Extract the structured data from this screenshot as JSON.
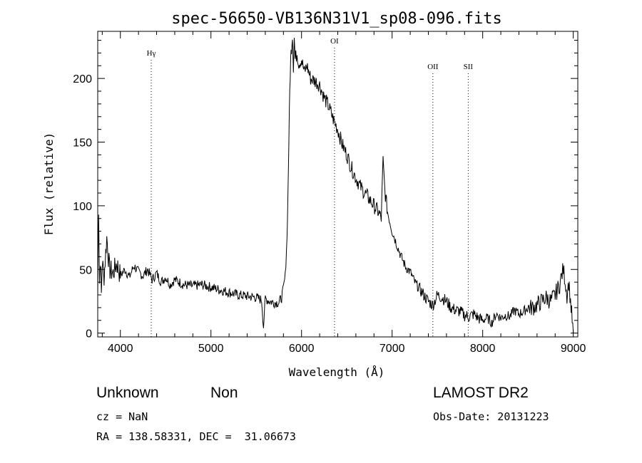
{
  "chart_data": {
    "type": "line",
    "title": "spec-56650-VB136N31V1_sp08-096.fits",
    "xlabel": "Wavelength (Å)",
    "ylabel": "Flux (relative)",
    "xlim": [
      3750,
      9050
    ],
    "ylim": [
      -3,
      237
    ],
    "x_ticks": [
      4000,
      5000,
      6000,
      7000,
      8000,
      9000
    ],
    "y_ticks": [
      0,
      50,
      100,
      150,
      200
    ],
    "grid": false,
    "series": [
      {
        "x": [
          3750,
          3760,
          3770,
          3780,
          3790,
          3800,
          3820,
          3850,
          3880,
          3920,
          3960,
          4000,
          4050,
          4100,
          4150,
          4200,
          4250,
          4300,
          4350,
          4400,
          4450,
          4500,
          4550,
          4600,
          4650,
          4700,
          4800,
          4900,
          5000,
          5100,
          5200,
          5300,
          5400,
          5500,
          5560,
          5580,
          5600,
          5650,
          5700,
          5750,
          5780,
          5800,
          5820,
          5840,
          5850,
          5860,
          5870,
          5880,
          5890,
          5900,
          5910,
          5920,
          5930,
          5950,
          5970,
          6000,
          6030,
          6060,
          6100,
          6150,
          6200,
          6250,
          6300,
          6350,
          6400,
          6450,
          6500,
          6550,
          6600,
          6650,
          6700,
          6750,
          6800,
          6850,
          6880,
          6900,
          6920,
          6950,
          7000,
          7050,
          7100,
          7150,
          7200,
          7250,
          7300,
          7350,
          7400,
          7450,
          7500,
          7550,
          7600,
          7650,
          7700,
          7750,
          7800,
          7850,
          7900,
          7950,
          8000,
          8050,
          8100,
          8150,
          8200,
          8250,
          8300,
          8350,
          8400,
          8450,
          8500,
          8550,
          8600,
          8650,
          8700,
          8750,
          8800,
          8830,
          8850,
          8870,
          8890,
          8910,
          8930,
          8950,
          8970,
          9000
        ],
        "y": [
          30,
          100,
          40,
          60,
          30,
          55,
          45,
          75,
          50,
          47,
          55,
          45,
          50,
          44,
          53,
          48,
          45,
          50,
          42,
          47,
          40,
          44,
          38,
          42,
          40,
          38,
          37,
          38,
          36,
          34,
          32,
          30,
          29,
          28,
          26,
          5,
          27,
          25,
          24,
          24,
          28,
          35,
          45,
          75,
          110,
          150,
          190,
          215,
          225,
          235,
          210,
          232,
          215,
          220,
          212,
          215,
          205,
          210,
          200,
          198,
          195,
          185,
          178,
          168,
          160,
          148,
          140,
          130,
          122,
          115,
          110,
          105,
          100,
          95,
          90,
          135,
          112,
          95,
          80,
          70,
          60,
          52,
          48,
          40,
          35,
          30,
          25,
          22,
          30,
          28,
          25,
          20,
          18,
          17,
          14,
          13,
          15,
          12,
          10,
          12,
          8,
          15,
          12,
          14,
          13,
          18,
          15,
          17,
          20,
          20,
          22,
          25,
          28,
          25,
          30,
          35,
          38,
          45,
          50,
          42,
          30,
          40,
          25,
          0
        ]
      }
    ],
    "line_annotations": [
      {
        "label": "Hγ",
        "x": 4341
      },
      {
        "label": "OI",
        "x": 6364
      },
      {
        "label": "OII",
        "x": 7450
      },
      {
        "label": "SII",
        "x": 7840
      }
    ]
  },
  "footer": {
    "class_label": "Unknown",
    "subclass_label": "Non",
    "cz": "cz = NaN",
    "coords": "RA = 138.58331, DEC =  31.06673",
    "survey": "LAMOST DR2",
    "obs_date": "Obs-Date: 20131223"
  }
}
